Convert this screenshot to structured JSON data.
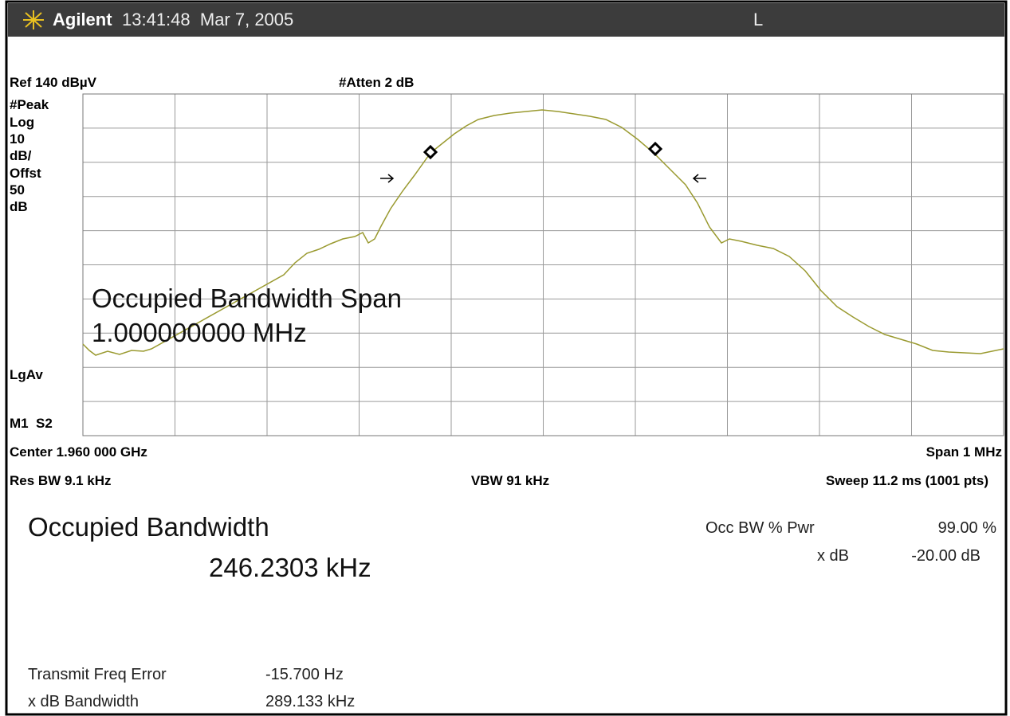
{
  "header": {
    "brand": "Agilent",
    "timestamp": "13:41:48  Mar 7, 2005",
    "indicator": "L"
  },
  "screen": {
    "ref_level": "Ref 140 dBµV",
    "attenuation": "#Atten 2 dB",
    "side_labels": [
      "#Peak",
      "Log",
      "10",
      "dB/",
      "Offst",
      "50",
      "dB",
      "LgAv",
      "M1  S2"
    ],
    "overlay": [
      "Occupied Bandwidth Span",
      "1.000000000 MHz"
    ],
    "center": "Center 1.960 000 GHz",
    "span": "Span 1 MHz",
    "res_bw": "Res BW 9.1 kHz",
    "vbw": "VBW 91 kHz",
    "sweep": "Sweep 11.2 ms (1001 pts)"
  },
  "results": {
    "title": "Occupied Bandwidth",
    "value": "246.2303 kHz",
    "occ_bw_label": "Occ BW % Pwr",
    "occ_bw_value": "99.00 %",
    "xdb_label": "x dB",
    "xdb_value": "-20.00 dB",
    "rows": [
      [
        "Transmit Freq Error",
        "-15.700 Hz"
      ],
      [
        "x dB Bandwidth",
        "289.133 kHz"
      ]
    ]
  }
}
